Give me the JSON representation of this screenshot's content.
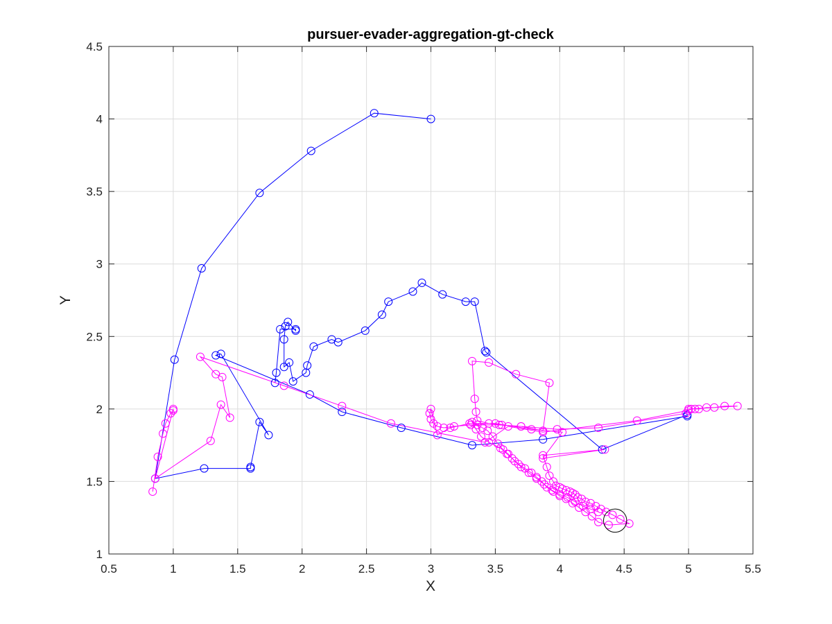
{
  "chart_data": {
    "type": "scatter",
    "title": "pursuer-evader-aggregation-gt-check",
    "xlabel": "X",
    "ylabel": "Y",
    "xlim": [
      0.5,
      5.5
    ],
    "ylim": [
      1,
      4.5
    ],
    "xticks": [
      "0.5",
      "1",
      "1.5",
      "2",
      "2.5",
      "3",
      "3.5",
      "4",
      "4.5",
      "5",
      "5.5"
    ],
    "yticks": [
      "1",
      "1.5",
      "2",
      "2.5",
      "3",
      "3.5",
      "4",
      "4.5"
    ],
    "grid": true,
    "marker": "circle",
    "series": [
      {
        "color": "#0000ff",
        "points": [
          [
            3.0,
            4.0
          ],
          [
            2.56,
            4.04
          ],
          [
            2.07,
            3.78
          ],
          [
            1.67,
            3.49
          ],
          [
            1.22,
            2.97
          ],
          [
            1.01,
            2.34
          ],
          [
            0.86,
            1.52
          ],
          [
            1.24,
            1.59
          ],
          [
            1.6,
            1.59
          ],
          [
            1.6,
            1.6
          ],
          [
            1.67,
            1.91
          ],
          [
            1.74,
            1.82
          ],
          [
            1.37,
            2.38
          ],
          [
            1.33,
            2.37
          ],
          [
            2.06,
            2.1
          ],
          [
            2.31,
            1.98
          ],
          [
            2.77,
            1.87
          ],
          [
            3.32,
            1.75
          ],
          [
            3.87,
            1.79
          ],
          [
            4.99,
            1.95
          ],
          [
            4.99,
            1.96
          ],
          [
            4.33,
            1.72
          ],
          [
            3.43,
            2.39
          ],
          [
            3.42,
            2.4
          ],
          [
            3.34,
            2.74
          ],
          [
            3.27,
            2.74
          ],
          [
            3.09,
            2.79
          ],
          [
            2.93,
            2.87
          ],
          [
            2.86,
            2.81
          ],
          [
            2.67,
            2.74
          ],
          [
            2.62,
            2.65
          ],
          [
            2.49,
            2.54
          ],
          [
            2.28,
            2.46
          ],
          [
            2.23,
            2.48
          ],
          [
            2.09,
            2.43
          ],
          [
            2.04,
            2.3
          ],
          [
            2.03,
            2.25
          ],
          [
            1.93,
            2.19
          ],
          [
            1.9,
            2.32
          ],
          [
            1.86,
            2.29
          ],
          [
            1.86,
            2.48
          ],
          [
            1.87,
            2.57
          ],
          [
            1.89,
            2.6
          ],
          [
            1.95,
            2.54
          ],
          [
            1.95,
            2.55
          ],
          [
            1.83,
            2.55
          ],
          [
            1.8,
            2.25
          ],
          [
            1.79,
            2.18
          ]
        ]
      },
      {
        "color": "#ff00ff",
        "points": [
          [
            0.84,
            1.43
          ],
          [
            0.88,
            1.67
          ],
          [
            0.92,
            1.83
          ],
          [
            0.94,
            1.9
          ],
          [
            0.98,
            1.97
          ],
          [
            1.0,
            1.99
          ],
          [
            1.0,
            2.0
          ],
          [
            0.86,
            1.52
          ],
          [
            1.29,
            1.78
          ],
          [
            1.37,
            2.03
          ],
          [
            1.44,
            1.94
          ],
          [
            1.38,
            2.22
          ],
          [
            1.33,
            2.24
          ],
          [
            1.21,
            2.36
          ],
          [
            1.86,
            2.16
          ],
          [
            2.31,
            2.02
          ],
          [
            2.69,
            1.9
          ],
          [
            3.42,
            1.77
          ],
          [
            3.6,
            1.88
          ],
          [
            3.87,
            1.84
          ],
          [
            4.6,
            1.92
          ],
          [
            5.0,
            1.99
          ],
          [
            5.02,
            2.0
          ],
          [
            5.05,
            2.0
          ],
          [
            5.08,
            2.0
          ],
          [
            5.14,
            2.01
          ],
          [
            5.2,
            2.01
          ],
          [
            5.28,
            2.02
          ],
          [
            5.38,
            2.02
          ],
          [
            5.0,
            2.0
          ],
          [
            4.98,
            1.97
          ],
          [
            4.3,
            1.87
          ],
          [
            3.98,
            1.86
          ],
          [
            3.7,
            1.88
          ],
          [
            3.55,
            1.89
          ],
          [
            3.45,
            1.9
          ],
          [
            3.36,
            1.92
          ],
          [
            3.35,
            1.98
          ],
          [
            3.34,
            2.07
          ],
          [
            3.32,
            2.33
          ],
          [
            3.45,
            2.32
          ],
          [
            3.66,
            2.24
          ],
          [
            3.92,
            2.18
          ],
          [
            3.87,
            1.85
          ],
          [
            3.7,
            1.88
          ],
          [
            3.53,
            1.89
          ],
          [
            3.31,
            1.89
          ],
          [
            3.18,
            1.88
          ],
          [
            3.1,
            1.87
          ],
          [
            3.05,
            1.88
          ],
          [
            3.02,
            1.9
          ],
          [
            3.0,
            1.93
          ],
          [
            2.99,
            1.97
          ],
          [
            3.0,
            2.0
          ],
          [
            3.05,
            1.82
          ],
          [
            3.15,
            1.87
          ],
          [
            3.3,
            1.9
          ],
          [
            3.5,
            1.9
          ],
          [
            3.78,
            1.86
          ],
          [
            4.02,
            1.84
          ],
          [
            3.87,
            1.66
          ],
          [
            4.35,
            1.72
          ],
          [
            3.87,
            1.68
          ],
          [
            3.9,
            1.6
          ],
          [
            3.92,
            1.54
          ],
          [
            3.95,
            1.5
          ],
          [
            3.97,
            1.47
          ],
          [
            4.0,
            1.46
          ],
          [
            4.02,
            1.45
          ],
          [
            4.05,
            1.44
          ],
          [
            4.08,
            1.43
          ],
          [
            4.1,
            1.42
          ],
          [
            4.12,
            1.41
          ],
          [
            4.14,
            1.39
          ],
          [
            4.17,
            1.38
          ],
          [
            4.2,
            1.36
          ],
          [
            4.24,
            1.35
          ],
          [
            4.28,
            1.33
          ],
          [
            4.32,
            1.31
          ],
          [
            4.36,
            1.29
          ],
          [
            4.41,
            1.27
          ],
          [
            4.47,
            1.24
          ],
          [
            4.54,
            1.21
          ],
          [
            4.38,
            1.2
          ],
          [
            4.3,
            1.22
          ],
          [
            4.25,
            1.26
          ],
          [
            4.2,
            1.29
          ],
          [
            4.15,
            1.32
          ],
          [
            4.1,
            1.35
          ],
          [
            4.05,
            1.38
          ],
          [
            4.0,
            1.4
          ],
          [
            3.95,
            1.43
          ],
          [
            3.9,
            1.46
          ],
          [
            3.86,
            1.5
          ],
          [
            3.82,
            1.53
          ],
          [
            3.78,
            1.56
          ],
          [
            3.73,
            1.59
          ],
          [
            3.68,
            1.62
          ],
          [
            3.63,
            1.66
          ],
          [
            3.59,
            1.69
          ],
          [
            3.56,
            1.72
          ],
          [
            3.52,
            1.76
          ],
          [
            3.48,
            1.81
          ],
          [
            3.44,
            1.85
          ],
          [
            3.4,
            1.87
          ],
          [
            3.36,
            1.89
          ],
          [
            3.32,
            1.91
          ],
          [
            3.35,
            1.86
          ],
          [
            3.39,
            1.81
          ],
          [
            3.45,
            1.77
          ],
          [
            3.54,
            1.73
          ],
          [
            3.6,
            1.69
          ],
          [
            3.65,
            1.64
          ],
          [
            3.7,
            1.6
          ],
          [
            3.76,
            1.56
          ],
          [
            3.82,
            1.52
          ],
          [
            3.88,
            1.48
          ],
          [
            3.94,
            1.44
          ],
          [
            4.0,
            1.41
          ],
          [
            4.06,
            1.39
          ],
          [
            4.12,
            1.36
          ],
          [
            4.18,
            1.33
          ],
          [
            4.24,
            1.31
          ],
          [
            4.3,
            1.29
          ]
        ]
      }
    ],
    "highlight_circle": {
      "center": [
        4.43,
        1.23
      ],
      "radius": 0.09,
      "color": "#000000"
    }
  }
}
